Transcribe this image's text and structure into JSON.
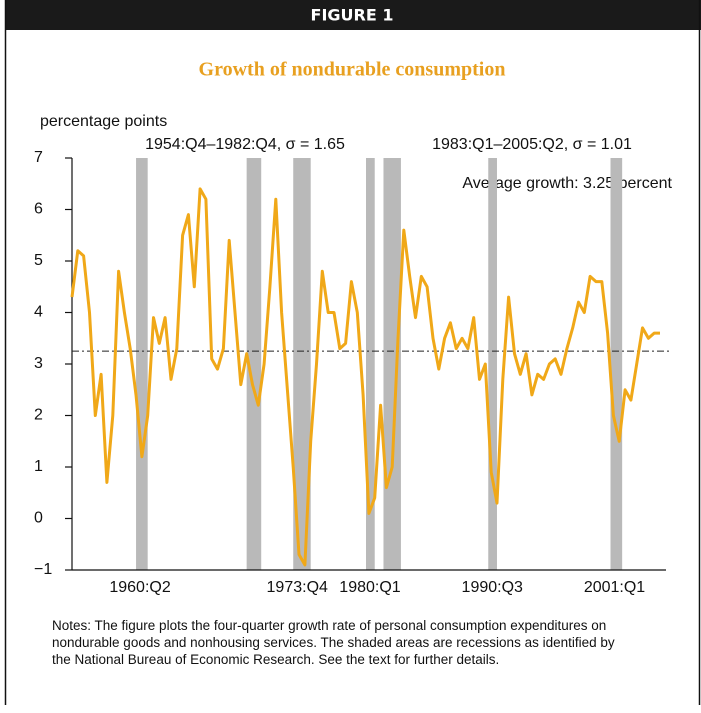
{
  "figure_label": "FIGURE 1",
  "notes": "Notes: The figure plots the four-quarter growth rate of personal consumption expenditures on nondurable goods and nonhousing services. The shaded areas are recessions as identified by the National Bureau of Economic Research. See the text for further details.",
  "chart_data": {
    "type": "line",
    "title": "Growth of nondurable consumption",
    "y_label": "percentage points",
    "annotations": [
      "1954:Q4–1982:Q4, σ = 1.65",
      "1983:Q1–2005:Q2, σ = 1.01",
      "Average growth: 3.25 percent"
    ],
    "color": "#f0a818",
    "recession_color": "#b9b9b9",
    "average": 3.25,
    "xlim": [
      "1954:Q4",
      "2005:Q2"
    ],
    "xticks": [
      "1960:Q2",
      "1973:Q4",
      "1980:Q1",
      "1990:Q3",
      "2001:Q1"
    ],
    "ylim": [
      -1,
      7
    ],
    "yticks": [
      {
        "value": -1,
        "label": "−1"
      },
      0,
      1,
      2,
      3,
      4,
      5,
      6,
      7
    ],
    "recessions": [
      [
        "1960:Q2",
        "1961:Q1"
      ],
      [
        "1969:Q4",
        "1970:Q4"
      ],
      [
        "1973:Q4",
        "1975:Q1"
      ],
      [
        "1980:Q1",
        "1980:Q3"
      ],
      [
        "1981:Q3",
        "1982:Q4"
      ],
      [
        "1990:Q3",
        "1991:Q1"
      ],
      [
        "2001:Q1",
        "2001:Q4"
      ]
    ],
    "x": [
      "1954:Q4",
      "1955:Q2",
      "1955:Q4",
      "1956:Q2",
      "1956:Q4",
      "1957:Q2",
      "1957:Q4",
      "1958:Q2",
      "1958:Q4",
      "1959:Q2",
      "1959:Q4",
      "1960:Q2",
      "1960:Q4",
      "1961:Q2",
      "1961:Q4",
      "1962:Q2",
      "1962:Q4",
      "1963:Q2",
      "1963:Q4",
      "1964:Q2",
      "1964:Q4",
      "1965:Q2",
      "1965:Q4",
      "1966:Q2",
      "1966:Q4",
      "1967:Q2",
      "1967:Q4",
      "1968:Q2",
      "1968:Q4",
      "1969:Q2",
      "1969:Q4",
      "1970:Q2",
      "1970:Q4",
      "1971:Q2",
      "1971:Q4",
      "1972:Q2",
      "1972:Q4",
      "1973:Q2",
      "1973:Q4",
      "1974:Q2",
      "1974:Q4",
      "1975:Q2",
      "1975:Q4",
      "1976:Q2",
      "1976:Q4",
      "1977:Q2",
      "1977:Q4",
      "1978:Q2",
      "1978:Q4",
      "1979:Q2",
      "1979:Q4",
      "1980:Q2",
      "1980:Q4",
      "1981:Q2",
      "1981:Q4",
      "1982:Q2",
      "1982:Q4",
      "1983:Q2",
      "1983:Q4",
      "1984:Q2",
      "1984:Q4",
      "1985:Q2",
      "1985:Q4",
      "1986:Q2",
      "1986:Q4",
      "1987:Q2",
      "1987:Q4",
      "1988:Q2",
      "1988:Q4",
      "1989:Q2",
      "1989:Q4",
      "1990:Q2",
      "1990:Q4",
      "1991:Q2",
      "1991:Q4",
      "1992:Q2",
      "1992:Q4",
      "1993:Q2",
      "1993:Q4",
      "1994:Q2",
      "1994:Q4",
      "1995:Q2",
      "1995:Q4",
      "1996:Q2",
      "1996:Q4",
      "1997:Q2",
      "1997:Q4",
      "1998:Q2",
      "1998:Q4",
      "1999:Q2",
      "1999:Q4",
      "2000:Q2",
      "2000:Q4",
      "2001:Q2",
      "2001:Q4",
      "2002:Q2",
      "2002:Q4",
      "2003:Q2",
      "2003:Q4",
      "2004:Q2",
      "2004:Q4",
      "2005:Q2"
    ],
    "values": [
      4.3,
      5.2,
      5.1,
      4.0,
      2.0,
      2.8,
      0.7,
      2.0,
      4.8,
      4.0,
      3.3,
      2.4,
      1.2,
      2.0,
      3.9,
      3.4,
      3.9,
      2.7,
      3.3,
      5.5,
      5.9,
      4.5,
      6.4,
      6.2,
      3.1,
      2.9,
      3.3,
      5.4,
      4.0,
      2.6,
      3.2,
      2.6,
      2.2,
      3.0,
      4.5,
      6.2,
      4.0,
      2.5,
      1.0,
      -0.7,
      -0.9,
      1.5,
      3.0,
      4.8,
      4.0,
      4.0,
      3.3,
      3.4,
      4.6,
      4.0,
      2.4,
      0.1,
      0.4,
      2.2,
      0.6,
      1.0,
      3.5,
      5.6,
      4.7,
      3.9,
      4.7,
      4.5,
      3.5,
      2.9,
      3.5,
      3.8,
      3.3,
      3.5,
      3.3,
      3.9,
      2.7,
      3.0,
      0.9,
      0.3,
      2.7,
      4.3,
      3.2,
      2.8,
      3.2,
      2.4,
      2.8,
      2.7,
      3.0,
      3.1,
      2.8,
      3.3,
      3.7,
      4.2,
      4.0,
      4.7,
      4.6,
      4.6,
      3.6,
      2.0,
      1.5,
      2.5,
      2.3,
      3.0,
      3.7,
      3.5,
      3.6,
      3.6
    ]
  }
}
